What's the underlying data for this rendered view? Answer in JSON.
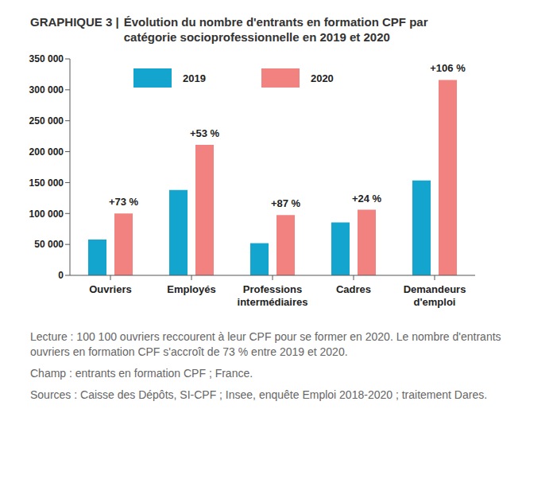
{
  "chart_data": {
    "type": "bar",
    "figure_label": "GRAPHIQUE 3 |",
    "title": "Évolution du nombre d'entrants en formation CPF par catégorie socioprofessionnelle en 2019 et 2020",
    "categories": [
      "Ouvriers",
      "Employés",
      "Professions intermédiaires",
      "Cadres",
      "Demandeurs d'emploi"
    ],
    "series": [
      {
        "name": "2019",
        "color": "#14a5cf",
        "values": [
          57900,
          138000,
          52000,
          85500,
          153500
        ]
      },
      {
        "name": "2020",
        "color": "#f2827f",
        "values": [
          100100,
          211000,
          97500,
          106000,
          316000
        ]
      }
    ],
    "annotations": [
      "+73 %",
      "+53 %",
      "+87 %",
      "+24 %",
      "+106 %"
    ],
    "ylim": [
      0,
      350000
    ],
    "yticks": [
      0,
      {
        "value": 50000,
        "label": "50 000"
      },
      {
        "value": 100000,
        "label": "100 000"
      },
      {
        "value": 150000,
        "label": "150 000"
      },
      {
        "value": 200000,
        "label": "200 000"
      },
      {
        "value": 250000,
        "label": "250 000"
      },
      {
        "value": 300000,
        "label": "300 000"
      },
      {
        "value": 350000,
        "label": "350 000"
      }
    ],
    "grid": false,
    "legend": "top",
    "data_labels": false,
    "notes": [
      "Lecture : 100 100 ouvriers reccourent à leur CPF pour se former en 2020. Le nombre d'entrants ouvriers en formation CPF s'accroît de 73 % entre 2019 et 2020.",
      "Champ : entrants en formation CPF ; France.",
      "Sources : Caisse des Dépôts, SI-CPF ; Insee, enquête Emploi 2018-2020 ; traitement Dares."
    ]
  }
}
